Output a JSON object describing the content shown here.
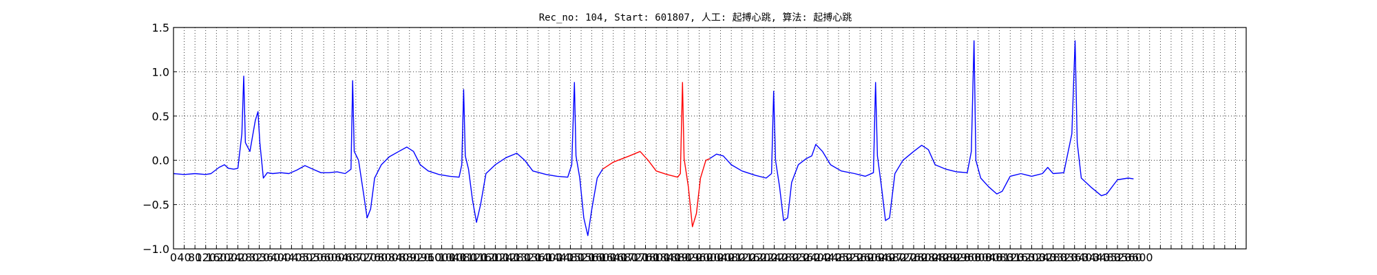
{
  "chart_data": {
    "type": "line",
    "title": "Rec_no: 104, Start: 601807, 人工: 起搏心跳, 算法: 起搏心跳",
    "xlabel": "",
    "ylabel": "",
    "xlim": [
      0,
      4000
    ],
    "ylim": [
      -1.0,
      1.5
    ],
    "grid": true,
    "grid_style": "dotted",
    "x_tick_step": 40,
    "x_tick_labels_shown": [
      "0",
      "40",
      "80",
      "120",
      "160",
      "200",
      "240",
      "280",
      "320",
      "360",
      "400",
      "440",
      "480",
      "520",
      "560",
      "600",
      "640",
      "680",
      "720",
      "760",
      "800",
      "840",
      "880",
      "920",
      "960",
      "1000",
      "1040",
      "1080",
      "1120",
      "1160",
      "1200",
      "1240",
      "1280",
      "1320",
      "1360",
      "1400",
      "1440",
      "1480",
      "1520",
      "1560",
      "1600",
      "1640",
      "1680",
      "1720",
      "1760",
      "1800",
      "1840",
      "1880",
      "1920",
      "1960",
      "2000",
      "2040",
      "2080",
      "2120",
      "2160",
      "2200",
      "2240",
      "2280",
      "2320",
      "2360",
      "2400",
      "2440",
      "2480",
      "2520",
      "2560",
      "2600",
      "2640",
      "2680",
      "2720",
      "2760",
      "2800",
      "2840",
      "2880",
      "2920",
      "2960",
      "3000",
      "3040",
      "3080",
      "3120",
      "3160",
      "3200",
      "3240",
      "3280",
      "3320",
      "3360",
      "3400",
      "3440",
      "3480",
      "3520",
      "3560",
      "3600"
    ],
    "y_ticks": [
      -1.0,
      -0.5,
      0.0,
      0.5,
      1.0,
      1.5
    ],
    "y_tick_labels": [
      "−1.0",
      "−0.5",
      "0.0",
      "0.5",
      "1.0",
      "1.5"
    ],
    "highlight": {
      "x_start": 1600,
      "x_end": 2000,
      "color": "#ff0000"
    },
    "series": [
      {
        "color": "#0000ff",
        "points": [
          [
            0,
            -0.15
          ],
          [
            40,
            -0.16
          ],
          [
            80,
            -0.15
          ],
          [
            120,
            -0.16
          ],
          [
            140,
            -0.15
          ],
          [
            170,
            -0.08
          ],
          [
            190,
            -0.05
          ],
          [
            205,
            -0.09
          ],
          [
            225,
            -0.1
          ],
          [
            240,
            -0.09
          ],
          [
            255,
            0.3
          ],
          [
            262,
            0.95
          ],
          [
            268,
            0.2
          ],
          [
            285,
            0.1
          ],
          [
            305,
            0.45
          ],
          [
            315,
            0.55
          ],
          [
            322,
            0.2
          ],
          [
            335,
            -0.2
          ],
          [
            350,
            -0.14
          ],
          [
            370,
            -0.15
          ],
          [
            400,
            -0.14
          ],
          [
            430,
            -0.15
          ],
          [
            460,
            -0.11
          ],
          [
            490,
            -0.06
          ],
          [
            520,
            -0.1
          ],
          [
            550,
            -0.14
          ],
          [
            580,
            -0.14
          ],
          [
            610,
            -0.13
          ],
          [
            640,
            -0.15
          ],
          [
            662,
            -0.1
          ],
          [
            668,
            0.9
          ],
          [
            674,
            0.1
          ],
          [
            690,
            0.0
          ],
          [
            710,
            -0.4
          ],
          [
            722,
            -0.65
          ],
          [
            735,
            -0.55
          ],
          [
            750,
            -0.2
          ],
          [
            775,
            -0.05
          ],
          [
            805,
            0.04
          ],
          [
            840,
            0.1
          ],
          [
            870,
            0.15
          ],
          [
            895,
            0.1
          ],
          [
            920,
            -0.05
          ],
          [
            950,
            -0.12
          ],
          [
            990,
            -0.16
          ],
          [
            1030,
            -0.18
          ],
          [
            1065,
            -0.19
          ],
          [
            1075,
            -0.05
          ],
          [
            1082,
            0.8
          ],
          [
            1088,
            0.05
          ],
          [
            1100,
            -0.1
          ],
          [
            1115,
            -0.45
          ],
          [
            1130,
            -0.7
          ],
          [
            1145,
            -0.5
          ],
          [
            1165,
            -0.15
          ],
          [
            1200,
            -0.05
          ],
          [
            1240,
            0.03
          ],
          [
            1280,
            0.08
          ],
          [
            1310,
            0.0
          ],
          [
            1340,
            -0.12
          ],
          [
            1390,
            -0.16
          ],
          [
            1430,
            -0.18
          ],
          [
            1470,
            -0.19
          ],
          [
            1485,
            -0.05
          ],
          [
            1495,
            0.88
          ],
          [
            1501,
            0.05
          ],
          [
            1515,
            -0.2
          ],
          [
            1530,
            -0.65
          ],
          [
            1545,
            -0.85
          ],
          [
            1560,
            -0.55
          ],
          [
            1580,
            -0.2
          ],
          [
            1600,
            -0.1
          ]
        ]
      },
      {
        "color": "#ff0000",
        "points": [
          [
            1600,
            -0.1
          ],
          [
            1640,
            -0.02
          ],
          [
            1700,
            0.05
          ],
          [
            1740,
            0.1
          ],
          [
            1770,
            0.0
          ],
          [
            1800,
            -0.12
          ],
          [
            1840,
            -0.16
          ],
          [
            1880,
            -0.19
          ],
          [
            1890,
            -0.15
          ],
          [
            1898,
            0.88
          ],
          [
            1904,
            0.02
          ],
          [
            1920,
            -0.3
          ],
          [
            1935,
            -0.75
          ],
          [
            1950,
            -0.6
          ],
          [
            1965,
            -0.2
          ],
          [
            1985,
            0.0
          ],
          [
            2000,
            0.02
          ]
        ]
      },
      {
        "color": "#0000ff",
        "points": [
          [
            2000,
            0.02
          ],
          [
            2025,
            0.07
          ],
          [
            2050,
            0.05
          ],
          [
            2080,
            -0.05
          ],
          [
            2120,
            -0.12
          ],
          [
            2170,
            -0.17
          ],
          [
            2210,
            -0.2
          ],
          [
            2230,
            -0.15
          ],
          [
            2238,
            0.78
          ],
          [
            2245,
            0.0
          ],
          [
            2260,
            -0.3
          ],
          [
            2275,
            -0.68
          ],
          [
            2290,
            -0.65
          ],
          [
            2305,
            -0.25
          ],
          [
            2330,
            -0.05
          ],
          [
            2360,
            0.02
          ],
          [
            2380,
            0.05
          ],
          [
            2395,
            0.18
          ],
          [
            2420,
            0.1
          ],
          [
            2450,
            -0.05
          ],
          [
            2490,
            -0.12
          ],
          [
            2540,
            -0.15
          ],
          [
            2580,
            -0.18
          ],
          [
            2610,
            -0.14
          ],
          [
            2618,
            0.88
          ],
          [
            2625,
            0.05
          ],
          [
            2640,
            -0.3
          ],
          [
            2655,
            -0.68
          ],
          [
            2670,
            -0.65
          ],
          [
            2690,
            -0.15
          ],
          [
            2720,
            0.0
          ],
          [
            2760,
            0.1
          ],
          [
            2790,
            0.17
          ],
          [
            2815,
            0.12
          ],
          [
            2840,
            -0.05
          ],
          [
            2880,
            -0.1
          ],
          [
            2920,
            -0.13
          ],
          [
            2960,
            -0.14
          ],
          [
            2975,
            0.1
          ],
          [
            2985,
            1.35
          ],
          [
            2992,
            0.0
          ],
          [
            3010,
            -0.2
          ],
          [
            3040,
            -0.3
          ],
          [
            3070,
            -0.38
          ],
          [
            3090,
            -0.35
          ],
          [
            3120,
            -0.18
          ],
          [
            3160,
            -0.15
          ],
          [
            3200,
            -0.18
          ],
          [
            3240,
            -0.15
          ],
          [
            3260,
            -0.08
          ],
          [
            3280,
            -0.15
          ],
          [
            3320,
            -0.14
          ],
          [
            3350,
            0.3
          ],
          [
            3362,
            1.35
          ],
          [
            3370,
            0.2
          ],
          [
            3385,
            -0.2
          ],
          [
            3420,
            -0.3
          ],
          [
            3460,
            -0.4
          ],
          [
            3480,
            -0.38
          ],
          [
            3520,
            -0.22
          ],
          [
            3560,
            -0.2
          ],
          [
            3580,
            -0.21
          ]
        ]
      }
    ]
  }
}
